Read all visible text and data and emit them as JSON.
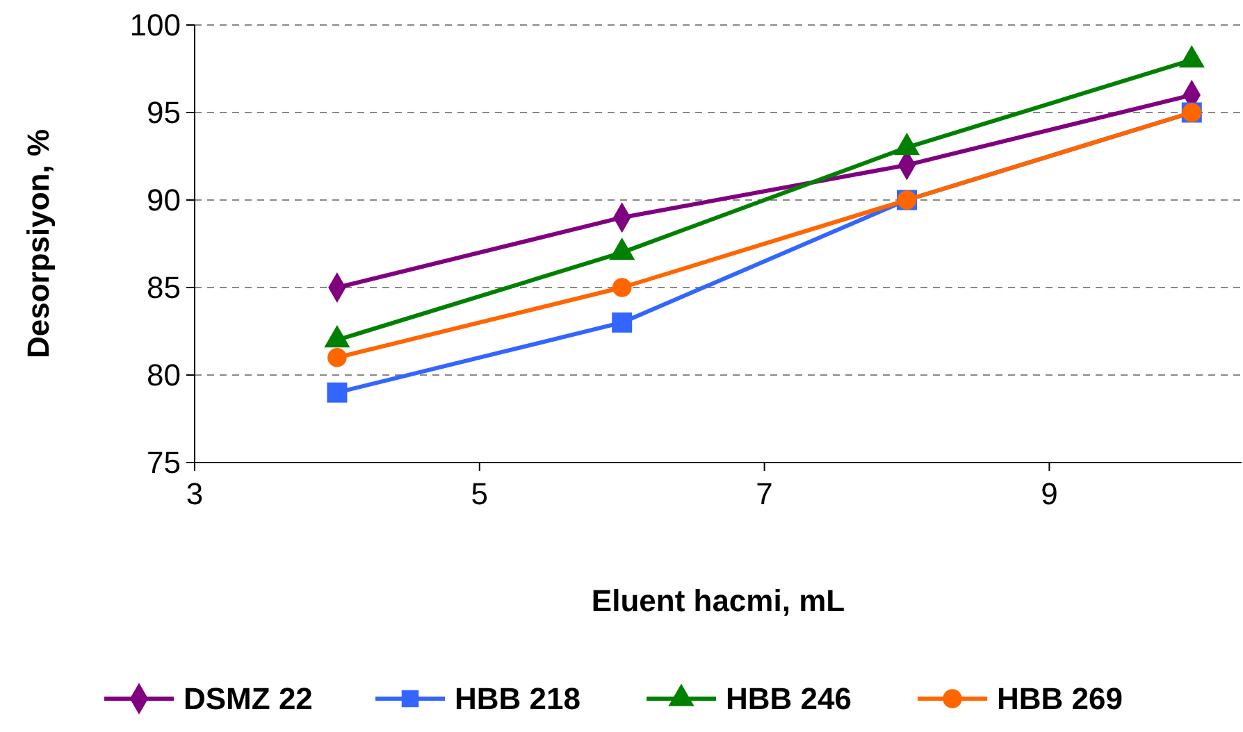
{
  "chart_data": {
    "type": "line",
    "xlabel": "Eluent hacmi, mL",
    "ylabel": "Desorpsiyon, %",
    "x": [
      4,
      6,
      8,
      10
    ],
    "series": [
      {
        "name": "DSMZ 22",
        "color": "#800080",
        "marker": "diamond",
        "values": [
          85,
          89,
          92,
          96
        ]
      },
      {
        "name": "HBB 218",
        "color": "#3366ff",
        "marker": "square",
        "values": [
          79,
          83,
          90,
          95
        ]
      },
      {
        "name": "HBB 246",
        "color": "#008000",
        "marker": "triangle",
        "values": [
          82,
          87,
          93,
          98
        ]
      },
      {
        "name": "HBB 269",
        "color": "#ff6600",
        "marker": "circle",
        "values": [
          81,
          85,
          90,
          95
        ]
      }
    ],
    "xlim": [
      3,
      10.35
    ],
    "xticks": [
      3,
      5,
      7,
      9
    ],
    "ylim": [
      75,
      100
    ],
    "yticks": [
      75,
      80,
      85,
      90,
      95,
      100
    ],
    "grid": "y",
    "legend": "bottom",
    "line_style": "solid"
  }
}
